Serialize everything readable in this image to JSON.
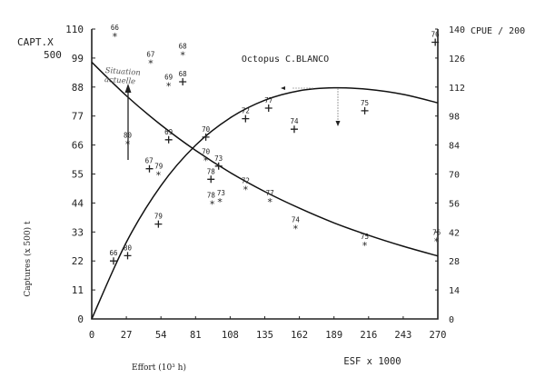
{
  "chart_data": {
    "type": "scatter",
    "title": "Octopus C.BLANCO",
    "xlabel": "Effort (10³ h)",
    "xlabel_secondary": "ESF x 1000",
    "ylabel": "Captures (x 500) t",
    "ylabel_left_top": [
      "CAPT.X",
      "500"
    ],
    "ylabel_right_top": "CPUE / 200",
    "xlim": [
      0,
      270
    ],
    "ylim_left": [
      0,
      110
    ],
    "ylim_right": [
      0,
      140
    ],
    "x_ticks": [
      "0",
      "27",
      "54",
      "81",
      "108",
      "135",
      "162",
      "189",
      "216",
      "243",
      "270"
    ],
    "y_ticks_left": [
      "0",
      "11",
      "22",
      "33",
      "44",
      "55",
      "66",
      "77",
      "88",
      "99",
      "110"
    ],
    "y_ticks_right": [
      "0",
      "14",
      "28",
      "42",
      "56",
      "70",
      "84",
      "98",
      "112",
      "126",
      "140"
    ],
    "grid": false,
    "annotation": "Situation actuelle",
    "series": [
      {
        "marker": "+",
        "axis": "left",
        "points": [
          {
            "label": "66",
            "x": 17,
            "y": 22
          },
          {
            "label": "80",
            "x": 28,
            "y": 24
          },
          {
            "label": "79",
            "x": 52,
            "y": 36
          },
          {
            "label": "67",
            "x": 45,
            "y": 57
          },
          {
            "label": "69",
            "x": 60,
            "y": 68
          },
          {
            "label": "68",
            "x": 71,
            "y": 90
          },
          {
            "label": "70",
            "x": 89,
            "y": 69
          },
          {
            "label": "78",
            "x": 93,
            "y": 53
          },
          {
            "label": "73",
            "x": 99,
            "y": 58
          },
          {
            "label": "72",
            "x": 120,
            "y": 76
          },
          {
            "label": "77",
            "x": 138,
            "y": 80
          },
          {
            "label": "74",
            "x": 158,
            "y": 72
          },
          {
            "label": "75",
            "x": 213,
            "y": 79
          },
          {
            "label": "76",
            "x": 268,
            "y": 105
          }
        ]
      },
      {
        "marker": "*",
        "axis": "right",
        "points": [
          {
            "label": "66",
            "x": 18,
            "y": 137
          },
          {
            "label": "67",
            "x": 46,
            "y": 124
          },
          {
            "label": "68",
            "x": 71,
            "y": 128
          },
          {
            "label": "69",
            "x": 60,
            "y": 113
          },
          {
            "label": "80",
            "x": 28,
            "y": 85
          },
          {
            "label": "79",
            "x": 52,
            "y": 70
          },
          {
            "label": "70",
            "x": 89,
            "y": 77
          },
          {
            "label": "78",
            "x": 94,
            "y": 56
          },
          {
            "label": "73",
            "x": 100,
            "y": 57
          },
          {
            "label": "72",
            "x": 120,
            "y": 63
          },
          {
            "label": "77",
            "x": 139,
            "y": 57
          },
          {
            "label": "74",
            "x": 159,
            "y": 44
          },
          {
            "label": "75",
            "x": 213,
            "y": 36
          },
          {
            "label": "76",
            "x": 269,
            "y": 38
          }
        ]
      },
      {
        "type": "line",
        "axis": "left",
        "x": [
          0,
          27,
          54,
          81,
          108,
          135,
          162,
          189,
          216,
          243,
          270
        ],
        "values": [
          0,
          29.1,
          50.6,
          65.9,
          76.3,
          83.0,
          86.6,
          87.7,
          87.1,
          85.2,
          82.0
        ]
      },
      {
        "type": "line",
        "axis": "right",
        "x": [
          0,
          27,
          54,
          81,
          108,
          135,
          162,
          189,
          216,
          243,
          270
        ],
        "values": [
          124,
          107.8,
          93.7,
          81.4,
          70.7,
          61.5,
          53.5,
          46.4,
          40.4,
          35.1,
          30.4
        ]
      }
    ]
  }
}
